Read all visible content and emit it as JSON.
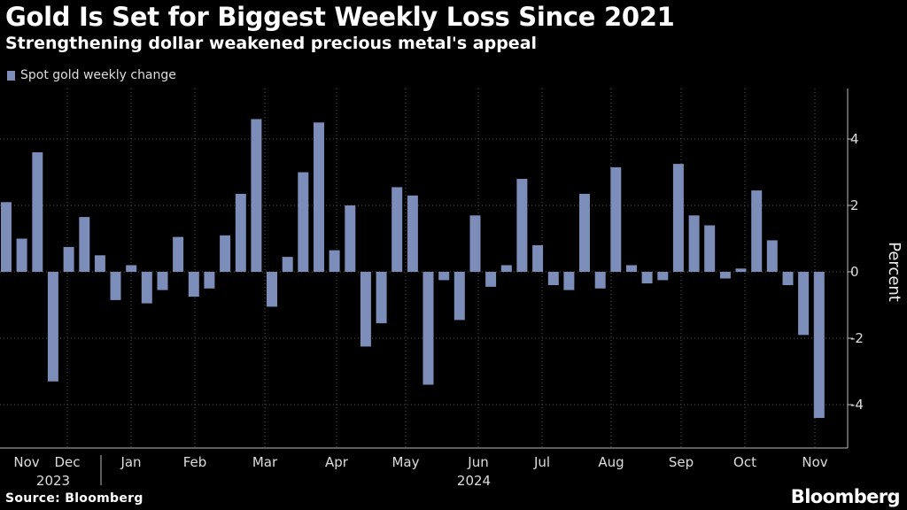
{
  "header": {
    "title": "Gold Is Set for Biggest Weekly Loss Since 2021",
    "subtitle": "Strengthening dollar weakened precious metal's appeal"
  },
  "footer": {
    "source": "Source: Bloomberg",
    "logo": "Bloomberg"
  },
  "colors": {
    "bar": "#7b8db8",
    "background": "#000000",
    "grid": "#555555"
  },
  "chart_data": {
    "type": "bar",
    "title": "Gold Is Set for Biggest Weekly Loss Since 2021",
    "subtitle": "Strengthening dollar weakened precious metal's appeal",
    "legend": [
      "Spot gold weekly change"
    ],
    "ylabel": "Percent",
    "xlabel": "",
    "ylim": [
      -5.2,
      5.4
    ],
    "yticks": [
      4,
      2,
      0,
      -2,
      -4
    ],
    "month_labels": [
      "Nov",
      "Dec",
      "Jan",
      "Feb",
      "Mar",
      "Apr",
      "May",
      "Jun",
      "Jul",
      "Aug",
      "Sep",
      "Oct",
      "Nov"
    ],
    "year_labels": [
      "2023",
      "2024"
    ],
    "series": [
      {
        "name": "Spot gold weekly change",
        "values": [
          2.1,
          1.0,
          3.6,
          -3.3,
          0.75,
          1.65,
          0.5,
          -0.85,
          0.2,
          -0.95,
          -0.55,
          1.05,
          -0.75,
          -0.5,
          1.1,
          2.35,
          4.6,
          -1.05,
          0.45,
          3.0,
          4.5,
          0.65,
          2.0,
          -2.25,
          -1.55,
          2.55,
          2.3,
          -3.4,
          -0.25,
          -1.45,
          1.7,
          -0.45,
          0.2,
          2.8,
          0.8,
          -0.4,
          -0.55,
          2.35,
          -0.5,
          3.15,
          0.2,
          -0.35,
          -0.25,
          3.25,
          1.7,
          1.4,
          -0.2,
          0.1,
          2.45,
          0.95,
          -0.4,
          -1.9,
          -4.4
        ]
      }
    ]
  }
}
